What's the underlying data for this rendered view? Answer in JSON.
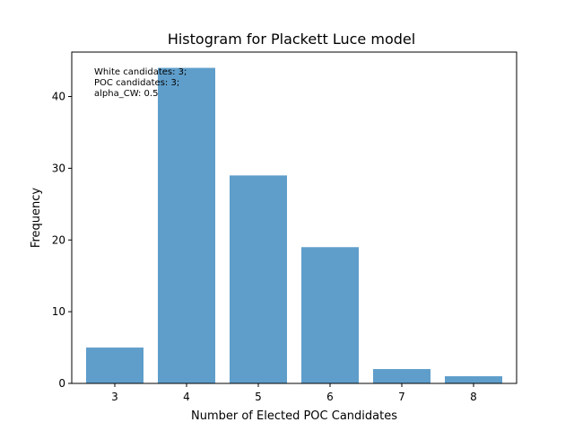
{
  "chart_data": {
    "type": "bar",
    "title": "Histogram for Plackett Luce model",
    "xlabel": "Number of Elected POC Candidates",
    "ylabel": "Frequency",
    "categories": [
      3,
      4,
      5,
      6,
      7,
      8
    ],
    "values": [
      5,
      44,
      29,
      19,
      2,
      1
    ],
    "xlim": [
      2.4,
      8.6
    ],
    "ylim": [
      0,
      46.2
    ],
    "yticks": [
      0,
      10,
      20,
      30,
      40
    ],
    "bar_width": 0.8,
    "bar_color": "#5f9ecb",
    "grid": false,
    "legend": false,
    "annotation": [
      "White candidates: 3;",
      "POC candidates: 3;",
      "alpha_CW: 0.5"
    ]
  }
}
